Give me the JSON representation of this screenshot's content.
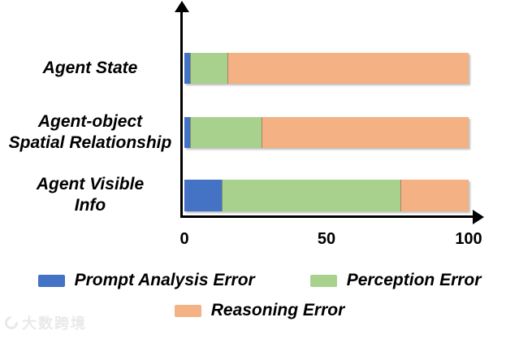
{
  "chart_data": {
    "type": "bar",
    "orientation": "horizontal",
    "stacked": true,
    "title": "",
    "xlabel": "",
    "ylabel": "",
    "categories": [
      "Agent State",
      "Agent-object\nSpatial Relationship",
      "Agent Visible\nInfo"
    ],
    "series": [
      {
        "name": "Prompt Analysis Error",
        "color": "#4472C4",
        "values": [
          2,
          2,
          13
        ]
      },
      {
        "name": "Perception Error",
        "color": "#A9D18E",
        "values": [
          13,
          25,
          63
        ]
      },
      {
        "name": "Reasoning Error",
        "color": "#F4B183",
        "values": [
          85,
          73,
          24
        ]
      }
    ],
    "x_ticks": [
      "0",
      "50",
      "100"
    ],
    "xlim": [
      0,
      100
    ],
    "grid": false,
    "legend_position": "bottom"
  },
  "watermark": {
    "text": "大数跨境"
  }
}
